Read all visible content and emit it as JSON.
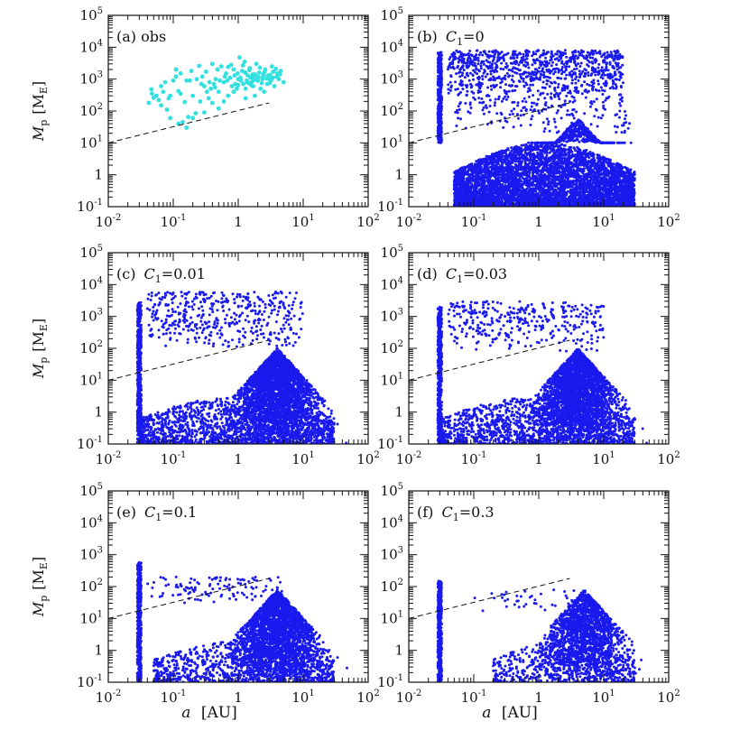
{
  "figure": {
    "xlabel_main": "a",
    "xlabel_unit": "[AU]",
    "ylabel_main": "M",
    "ylabel_sub": "p",
    "ylabel_unit_open": "[M",
    "ylabel_unit_sub": "E",
    "ylabel_unit_close": "]",
    "x_ticks": [
      {
        "exp": -2,
        "label": "10",
        "sup": "-2"
      },
      {
        "exp": -1,
        "label": "10",
        "sup": "-1"
      },
      {
        "exp": 0,
        "label": "1",
        "sup": ""
      },
      {
        "exp": 1,
        "label": "10",
        "sup": "1"
      },
      {
        "exp": 2,
        "label": "10",
        "sup": "2"
      }
    ],
    "y_ticks": [
      {
        "exp": -1,
        "label": "10",
        "sup": "-1"
      },
      {
        "exp": 0,
        "label": "1",
        "sup": ""
      },
      {
        "exp": 1,
        "label": "10",
        "sup": "1"
      },
      {
        "exp": 2,
        "label": "10",
        "sup": "2"
      },
      {
        "exp": 3,
        "label": "10",
        "sup": "3"
      },
      {
        "exp": 4,
        "label": "10",
        "sup": "4"
      },
      {
        "exp": 5,
        "label": "10",
        "sup": "5"
      }
    ],
    "colors": {
      "observed": "#33e0e0",
      "simulated": "#1a1aee",
      "axis": "#111111"
    }
  },
  "chart_data": [
    {
      "type": "scatter",
      "panel": "(a)",
      "title": "(a) obs",
      "x_scale": "log",
      "y_scale": "log",
      "xlim": [
        0.01,
        100
      ],
      "ylim": [
        0.1,
        100000
      ],
      "xlabel": "",
      "ylabel": "M_p [M_E]",
      "reference_line": {
        "style": "dashed",
        "x": [
          0.01,
          3
        ],
        "y": [
          10,
          180
        ]
      },
      "series": [
        {
          "color": "#33e0e0",
          "points": [
            [
              0.042,
              180
            ],
            [
              0.046,
              480
            ],
            [
              0.05,
              260
            ],
            [
              0.055,
              300
            ],
            [
              0.06,
              220
            ],
            [
              0.065,
              150
            ],
            [
              0.07,
              400
            ],
            [
              0.08,
              110
            ],
            [
              0.09,
              300
            ],
            [
              0.1,
              900
            ],
            [
              0.11,
              2000
            ],
            [
              0.12,
              420
            ],
            [
              0.13,
              1500
            ],
            [
              0.14,
              45
            ],
            [
              0.15,
              190
            ],
            [
              0.16,
              30
            ],
            [
              0.17,
              65
            ],
            [
              0.18,
              900
            ],
            [
              0.2,
              300
            ],
            [
              0.22,
              85
            ],
            [
              0.25,
              2600
            ],
            [
              0.28,
              1200
            ],
            [
              0.3,
              600
            ],
            [
              0.32,
              1700
            ],
            [
              0.35,
              250
            ],
            [
              0.38,
              500
            ],
            [
              0.4,
              3000
            ],
            [
              0.42,
              700
            ],
            [
              0.45,
              1000
            ],
            [
              0.5,
              400
            ],
            [
              0.55,
              2500
            ],
            [
              0.6,
              800
            ],
            [
              0.65,
              1500
            ],
            [
              0.7,
              300
            ],
            [
              0.75,
              1100
            ],
            [
              0.8,
              600
            ],
            [
              0.85,
              2000
            ],
            [
              0.9,
              700
            ],
            [
              1.0,
              1000
            ],
            [
              1.05,
              4800
            ],
            [
              1.1,
              900
            ],
            [
              1.2,
              700
            ],
            [
              1.3,
              500
            ],
            [
              1.4,
              1300
            ],
            [
              1.5,
              2200
            ],
            [
              1.6,
              800
            ],
            [
              1.7,
              600
            ],
            [
              1.8,
              1400
            ],
            [
              1.9,
              3000
            ],
            [
              2.0,
              900
            ],
            [
              2.2,
              500
            ],
            [
              2.4,
              1200
            ],
            [
              2.6,
              2000
            ],
            [
              2.8,
              700
            ],
            [
              3.0,
              1000
            ],
            [
              3.3,
              2500
            ],
            [
              3.6,
              600
            ],
            [
              4.0,
              1500
            ],
            [
              4.5,
              1800
            ],
            [
              5.0,
              800
            ],
            [
              0.7,
              2400
            ],
            [
              0.95,
              500
            ],
            [
              1.15,
              1800
            ],
            [
              1.25,
              3500
            ],
            [
              1.35,
              900
            ],
            [
              1.55,
              1100
            ],
            [
              1.75,
              950
            ],
            [
              2.1,
              1600
            ],
            [
              2.3,
              750
            ],
            [
              2.5,
              400
            ],
            [
              2.9,
              1300
            ],
            [
              3.2,
              900
            ],
            [
              3.8,
              2100
            ],
            [
              4.2,
              1000
            ],
            [
              0.09,
              60
            ],
            [
              0.12,
              40
            ],
            [
              0.2,
              60
            ],
            [
              0.3,
              90
            ],
            [
              0.5,
              120
            ],
            [
              0.6,
              200
            ],
            [
              0.85,
              400
            ],
            [
              1.3,
              250
            ],
            [
              1.8,
              300
            ],
            [
              0.4,
              180
            ],
            [
              1.0,
              650
            ],
            [
              1.45,
              750
            ],
            [
              1.65,
              1250
            ],
            [
              2.05,
              1150
            ],
            [
              2.45,
              1450
            ],
            [
              2.75,
              1050
            ],
            [
              3.1,
              1350
            ],
            [
              3.45,
              1700
            ],
            [
              0.065,
              600
            ],
            [
              0.075,
              800
            ],
            [
              0.085,
              250
            ],
            [
              0.13,
              350
            ],
            [
              0.16,
              900
            ],
            [
              0.23,
              1000
            ],
            [
              0.27,
              700
            ],
            [
              0.33,
              400
            ],
            [
              0.48,
              2000
            ],
            [
              0.52,
              900
            ],
            [
              0.62,
              1200
            ],
            [
              0.68,
              900
            ],
            [
              0.78,
              2800
            ],
            [
              0.88,
              1300
            ],
            [
              0.98,
              1500
            ],
            [
              1.08,
              1100
            ],
            [
              1.18,
              2700
            ],
            [
              1.28,
              1600
            ],
            [
              1.38,
              800
            ],
            [
              1.48,
              1900
            ],
            [
              1.58,
              650
            ],
            [
              1.68,
              1400
            ],
            [
              1.78,
              1000
            ],
            [
              1.95,
              1200
            ],
            [
              2.15,
              2300
            ],
            [
              2.35,
              1000
            ],
            [
              2.55,
              1700
            ],
            [
              2.85,
              1250
            ],
            [
              3.05,
              750
            ],
            [
              3.4,
              1100
            ],
            [
              3.9,
              1200
            ],
            [
              4.4,
              1400
            ],
            [
              0.047,
              350
            ],
            [
              0.11,
              1200
            ],
            [
              0.19,
              1800
            ],
            [
              0.26,
              200
            ],
            [
              0.36,
              800
            ],
            [
              0.44,
              550
            ]
          ]
        }
      ]
    },
    {
      "type": "scatter",
      "panel": "(b)",
      "title": "(b) C1=0",
      "title_parts": {
        "prefix": "(b) ",
        "var": "C",
        "sub": "1",
        "suffix": "=0"
      },
      "x_scale": "log",
      "y_scale": "log",
      "xlim": [
        0.01,
        100
      ],
      "ylim": [
        0.1,
        100000
      ],
      "reference_line": {
        "style": "dashed",
        "x": [
          0.01,
          3
        ],
        "y": [
          10,
          180
        ]
      },
      "series": [
        {
          "color": "#1a1aee",
          "clusters": [
            {
              "kind": "column",
              "x": 0.03,
              "y_range": [
                10,
                7000
              ],
              "count": 400
            },
            {
              "kind": "band",
              "x_range": [
                0.04,
                20
              ],
              "y_range": [
                300,
                8000
              ],
              "count": 900
            },
            {
              "kind": "band",
              "x_range": [
                0.05,
                25
              ],
              "y_range": [
                20,
                300
              ],
              "count": 200
            },
            {
              "kind": "mass",
              "x_range": [
                0.05,
                30
              ],
              "y_range": [
                0.1,
                10
              ],
              "count": 5500
            },
            {
              "kind": "peak",
              "x": 4,
              "y_range": [
                10,
                60
              ],
              "count": 500
            }
          ]
        }
      ]
    },
    {
      "type": "scatter",
      "panel": "(c)",
      "title": "(c) C1=0.01",
      "title_parts": {
        "prefix": "(c) ",
        "var": "C",
        "sub": "1",
        "suffix": "=0.01"
      },
      "x_scale": "log",
      "y_scale": "log",
      "xlim": [
        0.01,
        100
      ],
      "ylim": [
        0.1,
        100000
      ],
      "reference_line": {
        "style": "dashed",
        "x": [
          0.01,
          3
        ],
        "y": [
          10,
          180
        ]
      },
      "series": [
        {
          "color": "#1a1aee",
          "clusters": [
            {
              "kind": "column",
              "x": 0.03,
              "y_range": [
                0.1,
                3000
              ],
              "count": 500
            },
            {
              "kind": "band",
              "x_range": [
                0.04,
                10
              ],
              "y_range": [
                100,
                6000
              ],
              "count": 450
            },
            {
              "kind": "mass",
              "x_range": [
                0.03,
                30
              ],
              "y_range": [
                0.1,
                3
              ],
              "count": 1500
            },
            {
              "kind": "peak",
              "x": 4,
              "y_range": [
                0.1,
                100
              ],
              "count": 3000
            }
          ]
        }
      ]
    },
    {
      "type": "scatter",
      "panel": "(d)",
      "title": "(d) C1=0.03",
      "title_parts": {
        "prefix": "(d) ",
        "var": "C",
        "sub": "1",
        "suffix": "=0.03"
      },
      "x_scale": "log",
      "y_scale": "log",
      "xlim": [
        0.01,
        100
      ],
      "ylim": [
        0.1,
        100000
      ],
      "reference_line": {
        "style": "dashed",
        "x": [
          0.01,
          3
        ],
        "y": [
          10,
          180
        ]
      },
      "series": [
        {
          "color": "#1a1aee",
          "clusters": [
            {
              "kind": "column",
              "x": 0.03,
              "y_range": [
                0.1,
                2000
              ],
              "count": 500
            },
            {
              "kind": "band",
              "x_range": [
                0.04,
                10
              ],
              "y_range": [
                80,
                3000
              ],
              "count": 350
            },
            {
              "kind": "mass",
              "x_range": [
                0.03,
                30
              ],
              "y_range": [
                0.1,
                3
              ],
              "count": 1300
            },
            {
              "kind": "peak",
              "x": 4,
              "y_range": [
                0.1,
                100
              ],
              "count": 2800
            }
          ]
        }
      ]
    },
    {
      "type": "scatter",
      "panel": "(e)",
      "title": "(e) C1=0.1",
      "title_parts": {
        "prefix": "(e) ",
        "var": "C",
        "sub": "1",
        "suffix": "=0.1"
      },
      "x_scale": "log",
      "y_scale": "log",
      "xlim": [
        0.01,
        100
      ],
      "ylim": [
        0.1,
        100000
      ],
      "reference_line": {
        "style": "dashed",
        "x": [
          0.01,
          3
        ],
        "y": [
          10,
          180
        ]
      },
      "series": [
        {
          "color": "#1a1aee",
          "clusters": [
            {
              "kind": "column",
              "x": 0.03,
              "y_range": [
                0.1,
                600
              ],
              "count": 500
            },
            {
              "kind": "band",
              "x_range": [
                0.04,
                5
              ],
              "y_range": [
                30,
                200
              ],
              "count": 120
            },
            {
              "kind": "mass",
              "x_range": [
                0.05,
                30
              ],
              "y_range": [
                0.1,
                2
              ],
              "count": 900
            },
            {
              "kind": "peak",
              "x": 4,
              "y_range": [
                0.1,
                80
              ],
              "count": 2600
            }
          ]
        }
      ]
    },
    {
      "type": "scatter",
      "panel": "(f)",
      "title": "(f) C1=0.3",
      "title_parts": {
        "prefix": "(f) ",
        "var": "C",
        "sub": "1",
        "suffix": "=0.3"
      },
      "x_scale": "log",
      "y_scale": "log",
      "xlim": [
        0.01,
        100
      ],
      "ylim": [
        0.1,
        100000
      ],
      "reference_line": {
        "style": "dashed",
        "x": [
          0.01,
          3
        ],
        "y": [
          10,
          180
        ]
      },
      "series": [
        {
          "color": "#1a1aee",
          "clusters": [
            {
              "kind": "column",
              "x": 0.03,
              "y_range": [
                0.1,
                150
              ],
              "count": 450
            },
            {
              "kind": "band",
              "x_range": [
                0.1,
                4
              ],
              "y_range": [
                10,
                80
              ],
              "count": 40
            },
            {
              "kind": "mass",
              "x_range": [
                0.2,
                30
              ],
              "y_range": [
                0.1,
                2
              ],
              "count": 500
            },
            {
              "kind": "peak",
              "x": 5,
              "y_range": [
                0.1,
                80
              ],
              "count": 1800
            }
          ]
        }
      ]
    }
  ]
}
